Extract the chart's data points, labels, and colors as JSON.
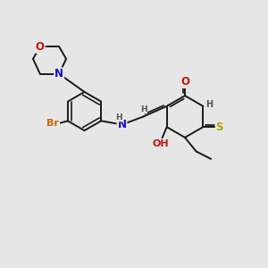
{
  "bg_color": "#e6e6e6",
  "bond_color": "#1a1a1a",
  "bond_width": 1.4,
  "atom_colors": {
    "C": "#1a1a1a",
    "N": "#1010cc",
    "O": "#cc1010",
    "S": "#aaaa00",
    "Br": "#cc6600",
    "H": "#555555"
  },
  "font_size": 8.5
}
